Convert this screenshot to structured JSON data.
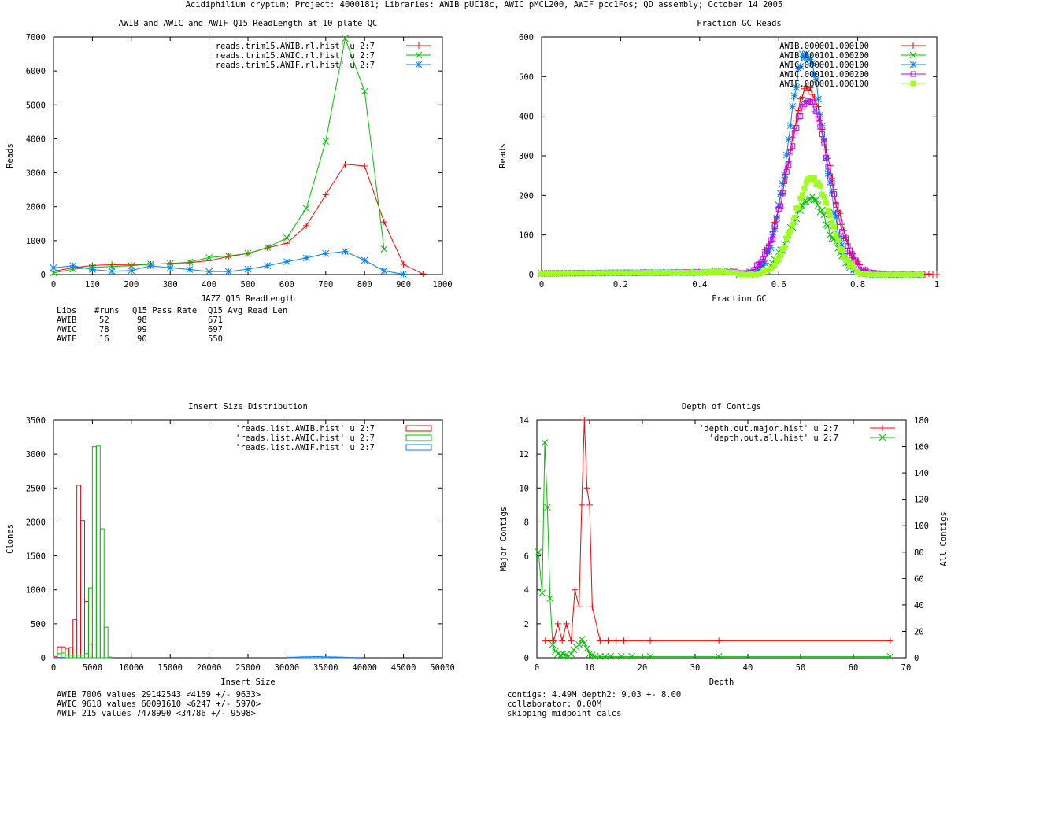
{
  "page_title": "Acidiphilium cryptum; Project: 4000181; Libraries: AWIB pUC18c, AWIC pMCL200, AWIF pcc1Fos; QD assembly; October 14 2005",
  "colors": {
    "red": "#ff0000",
    "green": "#00c000",
    "blue": "#0080ff",
    "magenta": "#c000ff",
    "lime": "#a0ff20"
  },
  "chart_data": [
    {
      "id": "readlength",
      "type": "line",
      "title": "AWIB and AWIC and AWIF Q15 ReadLength at 10 plate QC",
      "xlabel": "JAZZ Q15 ReadLength",
      "ylabel": "Reads",
      "xlim": [
        0,
        1000
      ],
      "ylim": [
        0,
        7000
      ],
      "xticks": [
        0,
        100,
        200,
        300,
        400,
        500,
        600,
        700,
        800,
        900,
        1000
      ],
      "yticks": [
        0,
        1000,
        2000,
        3000,
        4000,
        5000,
        6000,
        7000
      ],
      "legend_position": "top-right",
      "series": [
        {
          "name": "'reads.trim15.AWIB.rl.hist' u 2:7",
          "color": "red",
          "marker": "plus",
          "x": [
            0,
            50,
            100,
            150,
            200,
            250,
            300,
            350,
            400,
            450,
            500,
            550,
            600,
            650,
            700,
            750,
            800,
            850,
            900,
            950
          ],
          "y": [
            100,
            200,
            270,
            290,
            280,
            300,
            330,
            350,
            410,
            530,
            620,
            790,
            920,
            1440,
            2350,
            3250,
            3200,
            1550,
            300,
            20
          ]
        },
        {
          "name": "'reads.trim15.AWIC.rl.hist' u 2:7",
          "color": "green",
          "marker": "cross",
          "x": [
            0,
            50,
            100,
            150,
            200,
            250,
            300,
            350,
            400,
            450,
            500,
            550,
            600,
            650,
            700,
            750,
            800,
            850
          ],
          "y": [
            50,
            160,
            210,
            240,
            260,
            310,
            320,
            370,
            500,
            550,
            620,
            800,
            1080,
            1950,
            3930,
            6950,
            5400,
            750
          ]
        },
        {
          "name": "'reads.trim15.AWIF.rl.hist' u 2:7",
          "color": "blue",
          "marker": "star",
          "x": [
            0,
            50,
            100,
            150,
            200,
            250,
            300,
            350,
            400,
            450,
            500,
            550,
            600,
            650,
            700,
            750,
            800,
            850,
            900
          ],
          "y": [
            200,
            260,
            150,
            100,
            120,
            260,
            200,
            150,
            90,
            90,
            160,
            260,
            380,
            490,
            620,
            680,
            420,
            110,
            10
          ]
        }
      ],
      "stats_header": [
        "Libs",
        "#runs",
        "Q15 Pass Rate",
        "Q15 Avg Read Len"
      ],
      "stats_rows": [
        [
          "AWIB",
          "52",
          "98",
          "671"
        ],
        [
          "AWIC",
          "78",
          "99",
          "697"
        ],
        [
          "AWIF",
          "16",
          "90",
          "550"
        ]
      ]
    },
    {
      "id": "gc",
      "type": "line",
      "title": "Fraction GC Reads",
      "xlabel": "Fraction GC",
      "ylabel": "Reads",
      "xlim": [
        0,
        1
      ],
      "ylim": [
        0,
        600
      ],
      "xticks": [
        0,
        0.2,
        0.4,
        0.6,
        0.8,
        1
      ],
      "yticks": [
        0,
        100,
        200,
        300,
        400,
        500,
        600
      ],
      "legend_position": "top-right",
      "series": [
        {
          "name": "AWIB.000001.000100",
          "color": "red",
          "marker": "plus",
          "mu": 0.675,
          "sd": 0.052,
          "peak": 470,
          "noise": 25
        },
        {
          "name": "AWIB.000101.000200",
          "color": "green",
          "marker": "cross",
          "mu": 0.68,
          "sd": 0.048,
          "peak": 190,
          "noise": 20
        },
        {
          "name": "AWIC.000001.000100",
          "color": "blue",
          "marker": "star",
          "mu": 0.67,
          "sd": 0.045,
          "peak": 560,
          "noise": 25
        },
        {
          "name": "AWIC.000101.000200",
          "color": "magenta",
          "marker": "box",
          "mu": 0.675,
          "sd": 0.052,
          "peak": 440,
          "noise": 20
        },
        {
          "name": "AWIF.000001.000100",
          "color": "lime",
          "marker": "filledbox",
          "mu": 0.685,
          "sd": 0.045,
          "peak": 240,
          "noise": 15
        }
      ]
    },
    {
      "id": "insert",
      "type": "bar",
      "title": "Insert Size Distribution",
      "xlabel": "Insert Size",
      "ylabel": "Clones",
      "xlim": [
        0,
        50000
      ],
      "ylim": [
        0,
        3500
      ],
      "xticks": [
        0,
        5000,
        10000,
        15000,
        20000,
        25000,
        30000,
        35000,
        40000,
        45000,
        50000
      ],
      "yticks": [
        0,
        500,
        1000,
        1500,
        2000,
        2500,
        3000,
        3500
      ],
      "legend_position": "top-right",
      "bin_width": 500,
      "series": [
        {
          "name": "'reads.list.AWIB.hist' u 2:7",
          "color": "red",
          "x": [
            0,
            500,
            1000,
            1500,
            2000,
            2500,
            3000,
            3500,
            4000,
            4500
          ],
          "y": [
            20,
            160,
            160,
            140,
            150,
            560,
            2540,
            2020,
            830,
            200
          ]
        },
        {
          "name": "'reads.list.AWIC.hist' u 2:7",
          "color": "green",
          "x": [
            500,
            1000,
            1500,
            2000,
            2500,
            3000,
            3500,
            4000,
            4500,
            5000,
            5500,
            6000,
            6500,
            7000
          ],
          "y": [
            60,
            70,
            40,
            40,
            40,
            40,
            40,
            60,
            1030,
            3110,
            3120,
            1900,
            450,
            10
          ]
        },
        {
          "name": "'reads.list.AWIF.hist' u 2:7",
          "color": "blue",
          "x": [
            0,
            500,
            1000,
            30000,
            30500,
            31000,
            31500,
            32000,
            32500,
            33000,
            33500,
            34000,
            34500,
            35000,
            35500,
            36000,
            36500,
            37000,
            37500,
            38000,
            38500,
            39000
          ],
          "y": [
            5,
            5,
            5,
            8,
            8,
            10,
            12,
            14,
            14,
            16,
            18,
            18,
            14,
            14,
            12,
            12,
            10,
            8,
            6,
            5,
            4,
            3
          ]
        }
      ],
      "stats": [
        "AWIB 7006 values 29142543 <4159 +/- 9633>",
        "AWIC 9618 values 60091610 <6247 +/- 5970>",
        "AWIF 215 values 7478990 <34786 +/- 9598>"
      ]
    },
    {
      "id": "depth",
      "type": "line",
      "title": "Depth of Contigs",
      "xlabel": "Depth",
      "ylabel": "Major Contigs",
      "y2label": "All Contigs",
      "xlim": [
        0,
        70
      ],
      "ylim": [
        0,
        14
      ],
      "y2lim": [
        0,
        180
      ],
      "xticks": [
        0,
        10,
        20,
        30,
        40,
        50,
        60,
        70
      ],
      "yticks": [
        0,
        2,
        4,
        6,
        8,
        10,
        12,
        14
      ],
      "y2ticks": [
        0,
        20,
        40,
        60,
        80,
        100,
        120,
        140,
        160,
        180
      ],
      "legend_position": "top-right",
      "series": [
        {
          "name": "'depth.out.major.hist' u 2:7",
          "color": "red",
          "marker": "plus",
          "axis": "y",
          "x": [
            1.6,
            2.3,
            3.2,
            4,
            4.8,
            5.6,
            6.5,
            7.2,
            8,
            8.5,
            9,
            9.5,
            10,
            10.5,
            12,
            13.5,
            15,
            16.5,
            21.5,
            34.5,
            67
          ],
          "y": [
            1,
            1,
            1,
            2,
            1,
            2,
            1,
            4,
            3,
            9,
            14,
            10,
            9,
            3,
            1,
            1,
            1,
            1,
            1,
            1,
            1
          ]
        },
        {
          "name": "'depth.out.all.hist' u 2:7",
          "color": "green",
          "marker": "cross",
          "axis": "y2",
          "x": [
            0.3,
            1,
            1.5,
            2,
            2.5,
            3,
            3.5,
            4,
            4.5,
            5,
            5.5,
            6,
            6.5,
            7,
            7.5,
            8,
            8.5,
            9,
            9.5,
            10,
            10.5,
            11,
            12,
            13,
            14,
            16,
            18,
            21.5,
            34.5,
            67
          ],
          "y": [
            80,
            49,
            163,
            114,
            45,
            10,
            5,
            3,
            2,
            3,
            2,
            1,
            3,
            6,
            8,
            10,
            14,
            11,
            7,
            3,
            2,
            1,
            1,
            1,
            1,
            1,
            1,
            1,
            1,
            1
          ]
        }
      ],
      "stats": [
        "contigs:      4.49M    depth2: 9.03 +- 8.00",
        "collaborator: 0.00M",
        "skipping midpoint calcs"
      ]
    }
  ]
}
